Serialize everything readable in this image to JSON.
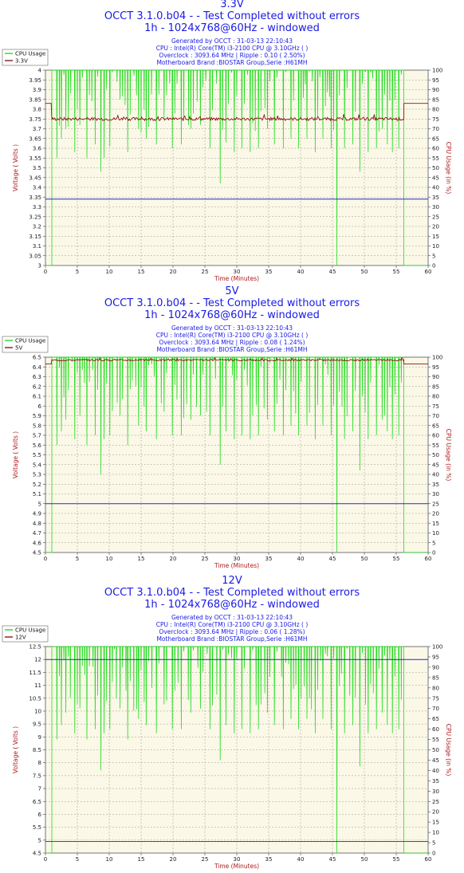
{
  "colors": {
    "title": "#1a1ae6",
    "plot_bg": "#fbf8e8",
    "cpu": "#22dd22",
    "voltage": "#8b1515",
    "ref_line": "#2a2ab8",
    "axis_label": "#b01818"
  },
  "chart_data": [
    {
      "type": "line",
      "name": "3.3V",
      "title": "3.3V",
      "subtitle": "OCCT 3.1.0.b04 -  - Test Completed without errors",
      "subtitle2": "1h - 1024x768@60Hz - windowed",
      "info": [
        "Generated by OCCT : 31-03-13 22:10:43",
        "CPU : Intel(R) Core(TM) i3-2100 CPU @ 3.10GHz (  )",
        "Overclock : 3093.64 MHz | Ripple : 0.10 ( 2.50%)",
        "Motherboard Brand :BIOSTAR Group,Serie :H61MH"
      ],
      "xlabel": "Time (Minutes)",
      "ylabel": "Voltage ( Volts )",
      "y2label": "CPU Usage (in %)",
      "legend": [
        "CPU Usage",
        "3.3V"
      ],
      "xlim": [
        0,
        60
      ],
      "ylim": [
        3.0,
        4.0
      ],
      "xticks": [
        "0",
        "5",
        "10",
        "15",
        "20",
        "25",
        "30",
        "35",
        "40",
        "45",
        "50",
        "55",
        "60"
      ],
      "yticks": [
        "3",
        "3.05",
        "3.1",
        "3.15",
        "3.2",
        "3.25",
        "3.3",
        "3.35",
        "3.4",
        "3.45",
        "3.5",
        "3.55",
        "3.6",
        "3.65",
        "3.7",
        "3.75",
        "3.8",
        "3.85",
        "3.9",
        "3.95",
        "4"
      ],
      "y2ticks": [
        "0",
        "5",
        "10",
        "15",
        "20",
        "25",
        "30",
        "35",
        "40",
        "45",
        "50",
        "55",
        "60",
        "65",
        "70",
        "75",
        "80",
        "85",
        "90",
        "95",
        "100"
      ],
      "voltage_series": {
        "idle_level": 3.83,
        "load_level": 3.75,
        "load_start": 1.0,
        "load_end": 56.2,
        "noise": 0.008
      },
      "reference_line": 3.34,
      "cpu_dips": [
        [
          1.0,
          0
        ],
        [
          1.8,
          55
        ],
        [
          2.5,
          65
        ],
        [
          3.2,
          70
        ],
        [
          4.6,
          58
        ],
        [
          5.4,
          72
        ],
        [
          6.5,
          55
        ],
        [
          7.8,
          62
        ],
        [
          8.7,
          48
        ],
        [
          9.2,
          55
        ],
        [
          10.1,
          61
        ],
        [
          11.7,
          85
        ],
        [
          12.9,
          58
        ],
        [
          14.6,
          70
        ],
        [
          15.8,
          65
        ],
        [
          17.4,
          62
        ],
        [
          18.6,
          75
        ],
        [
          19.9,
          60
        ],
        [
          21.3,
          62
        ],
        [
          22.8,
          70
        ],
        [
          24.3,
          72
        ],
        [
          25.8,
          60
        ],
        [
          27.4,
          42
        ],
        [
          28.3,
          63
        ],
        [
          29.6,
          58
        ],
        [
          30.8,
          60
        ],
        [
          32.1,
          58
        ],
        [
          33.4,
          60
        ],
        [
          34.8,
          70
        ],
        [
          35.9,
          62
        ],
        [
          37.3,
          60
        ],
        [
          38.5,
          65
        ],
        [
          39.7,
          60
        ],
        [
          41.0,
          65
        ],
        [
          42.3,
          58
        ],
        [
          43.5,
          65
        ],
        [
          44.8,
          60
        ],
        [
          45.7,
          0
        ],
        [
          46.9,
          60
        ],
        [
          48.2,
          62
        ],
        [
          49.3,
          48
        ],
        [
          50.6,
          58
        ],
        [
          51.9,
          60
        ],
        [
          52.8,
          70
        ],
        [
          53.6,
          62
        ],
        [
          54.4,
          58
        ],
        [
          55.4,
          60
        ],
        [
          56.2,
          0
        ]
      ]
    },
    {
      "type": "line",
      "name": "5V",
      "title": "5V",
      "subtitle": "OCCT 3.1.0.b04 -  - Test Completed without errors",
      "subtitle2": "1h - 1024x768@60Hz - windowed",
      "info": [
        "Generated by OCCT : 31-03-13 22:10:43",
        "CPU : Intel(R) Core(TM) i3-2100 CPU @ 3.10GHz (  )",
        "Overclock : 3093.64 MHz | Ripple : 0.08 ( 1.24%)",
        "Motherboard Brand :BIOSTAR Group,Serie :H61MH"
      ],
      "xlabel": "Time (Minutes)",
      "ylabel": "Voltage ( Volts )",
      "y2label": "CPU Usage (in %)",
      "legend": [
        "CPU Usage",
        "5V"
      ],
      "xlim": [
        0,
        60
      ],
      "ylim": [
        4.5,
        6.5
      ],
      "xticks": [
        "0",
        "5",
        "10",
        "15",
        "20",
        "25",
        "30",
        "35",
        "40",
        "45",
        "50",
        "55",
        "60"
      ],
      "yticks": [
        "4.5",
        "4.6",
        "4.7",
        "4.8",
        "4.9",
        "5",
        "5.1",
        "5.2",
        "5.3",
        "5.4",
        "5.5",
        "5.6",
        "5.7",
        "5.8",
        "5.9",
        "6",
        "6.1",
        "6.2",
        "6.3",
        "6.4",
        "6.5"
      ],
      "y2ticks": [
        "0",
        "5",
        "10",
        "15",
        "20",
        "25",
        "30",
        "35",
        "40",
        "45",
        "50",
        "55",
        "60",
        "65",
        "70",
        "75",
        "80",
        "85",
        "90",
        "95",
        "100"
      ],
      "voltage_series": {
        "idle_level": 6.43,
        "load_level": 6.47,
        "load_start": 1.0,
        "load_end": 56.2,
        "noise": 0.008
      },
      "reference_line": 5.0,
      "cpu_dips": [
        [
          1.0,
          0
        ],
        [
          1.8,
          55
        ],
        [
          2.5,
          62
        ],
        [
          3.2,
          68
        ],
        [
          4.6,
          58
        ],
        [
          5.4,
          70
        ],
        [
          6.5,
          55
        ],
        [
          7.8,
          60
        ],
        [
          8.7,
          40
        ],
        [
          9.2,
          58
        ],
        [
          10.1,
          60
        ],
        [
          11.7,
          70
        ],
        [
          12.9,
          55
        ],
        [
          14.6,
          65
        ],
        [
          15.8,
          62
        ],
        [
          17.4,
          58
        ],
        [
          18.6,
          72
        ],
        [
          19.9,
          60
        ],
        [
          21.3,
          60
        ],
        [
          22.8,
          68
        ],
        [
          24.3,
          70
        ],
        [
          25.8,
          60
        ],
        [
          27.4,
          45
        ],
        [
          28.3,
          62
        ],
        [
          29.6,
          58
        ],
        [
          30.8,
          60
        ],
        [
          32.1,
          58
        ],
        [
          33.4,
          60
        ],
        [
          34.8,
          68
        ],
        [
          35.9,
          62
        ],
        [
          37.3,
          60
        ],
        [
          38.5,
          65
        ],
        [
          39.7,
          60
        ],
        [
          41.0,
          65
        ],
        [
          42.3,
          58
        ],
        [
          43.5,
          65
        ],
        [
          44.8,
          60
        ],
        [
          45.7,
          0
        ],
        [
          46.9,
          58
        ],
        [
          48.2,
          62
        ],
        [
          49.3,
          42
        ],
        [
          50.6,
          58
        ],
        [
          51.9,
          60
        ],
        [
          52.8,
          68
        ],
        [
          53.6,
          62
        ],
        [
          54.4,
          58
        ],
        [
          55.4,
          60
        ],
        [
          56.2,
          0
        ]
      ]
    },
    {
      "type": "line",
      "name": "12V",
      "title": "12V",
      "subtitle": "OCCT 3.1.0.b04 -  - Test Completed without errors",
      "subtitle2": "1h - 1024x768@60Hz - windowed",
      "info": [
        "Generated by OCCT : 31-03-13 22:10:43",
        "CPU : Intel(R) Core(TM) i3-2100 CPU @ 3.10GHz (  )",
        "Overclock : 3093.64 MHz | Ripple : 0.06 ( 1.28%)",
        "Motherboard Brand :BIOSTAR Group,Serie :H61MH"
      ],
      "xlabel": "Time (Minutes)",
      "ylabel": "Voltage ( Volts )",
      "y2label": "CPU Usage (in %)",
      "legend": [
        "CPU Usage",
        "12V"
      ],
      "xlim": [
        0,
        60
      ],
      "ylim": [
        4.5,
        12.5
      ],
      "xticks": [
        "0",
        "5",
        "10",
        "15",
        "20",
        "25",
        "30",
        "35",
        "40",
        "45",
        "50",
        "55",
        "60"
      ],
      "yticks": [
        "4.5",
        "5",
        "5.5",
        "6",
        "6.5",
        "7",
        "7.5",
        "8",
        "8.5",
        "9",
        "9.5",
        "10",
        "10.5",
        "11",
        "11.5",
        "12",
        "12.5"
      ],
      "y2ticks": [
        "0",
        "5",
        "10",
        "15",
        "20",
        "25",
        "30",
        "35",
        "40",
        "45",
        "50",
        "55",
        "60",
        "65",
        "70",
        "75",
        "80",
        "85",
        "90",
        "95",
        "100"
      ],
      "voltage_series": {
        "idle_level": 4.95,
        "load_level": 4.95,
        "load_start": 1.0,
        "load_end": 56.2,
        "noise": 0.0
      },
      "reference_line": 12.0,
      "cpu_dips": [
        [
          1.0,
          0
        ],
        [
          1.8,
          55
        ],
        [
          2.5,
          62
        ],
        [
          3.2,
          68
        ],
        [
          4.6,
          58
        ],
        [
          5.4,
          70
        ],
        [
          6.5,
          55
        ],
        [
          7.8,
          60
        ],
        [
          8.7,
          40
        ],
        [
          9.2,
          58
        ],
        [
          10.1,
          60
        ],
        [
          11.7,
          70
        ],
        [
          12.9,
          55
        ],
        [
          14.6,
          65
        ],
        [
          15.8,
          62
        ],
        [
          17.4,
          58
        ],
        [
          18.6,
          72
        ],
        [
          19.9,
          60
        ],
        [
          21.3,
          60
        ],
        [
          22.8,
          68
        ],
        [
          24.3,
          70
        ],
        [
          25.8,
          60
        ],
        [
          27.4,
          45
        ],
        [
          28.3,
          62
        ],
        [
          29.6,
          58
        ],
        [
          30.8,
          60
        ],
        [
          32.1,
          58
        ],
        [
          33.4,
          60
        ],
        [
          34.8,
          68
        ],
        [
          35.9,
          62
        ],
        [
          37.3,
          60
        ],
        [
          38.5,
          65
        ],
        [
          39.7,
          60
        ],
        [
          41.0,
          65
        ],
        [
          42.3,
          58
        ],
        [
          43.5,
          65
        ],
        [
          44.8,
          60
        ],
        [
          45.7,
          0
        ],
        [
          46.9,
          58
        ],
        [
          48.2,
          62
        ],
        [
          49.3,
          42
        ],
        [
          50.6,
          58
        ],
        [
          51.9,
          60
        ],
        [
          52.8,
          68
        ],
        [
          53.6,
          62
        ],
        [
          54.4,
          58
        ],
        [
          55.4,
          60
        ],
        [
          56.2,
          0
        ]
      ]
    }
  ]
}
